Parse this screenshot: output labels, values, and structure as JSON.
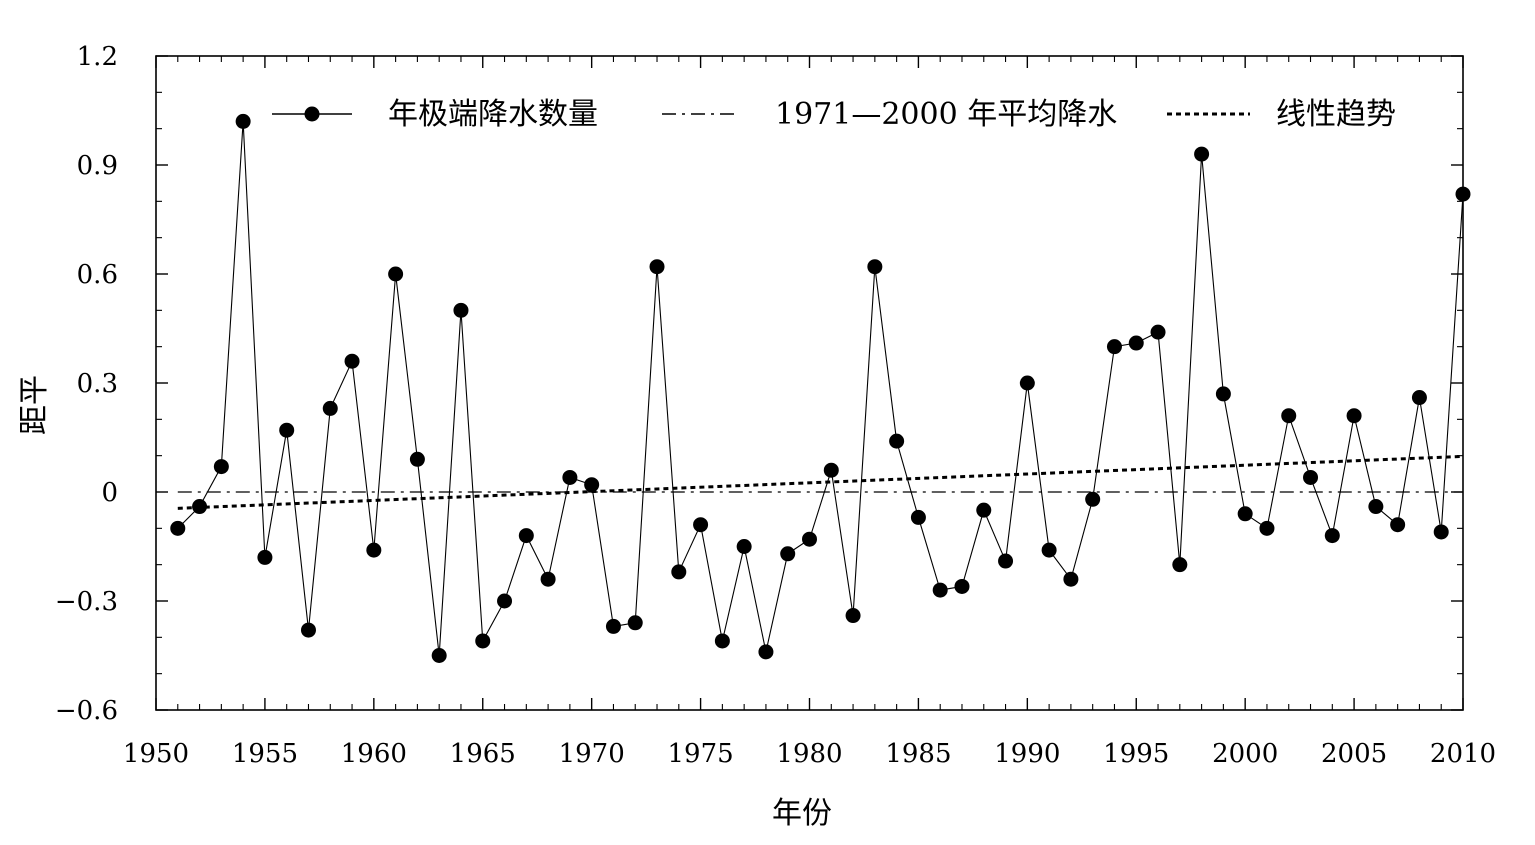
{
  "chart_data": {
    "type": "line",
    "xlabel": "年份",
    "ylabel": "距平",
    "xlim": [
      1950,
      2010
    ],
    "ylim": [
      -0.6,
      1.2
    ],
    "xticks": [
      1950,
      1955,
      1960,
      1965,
      1970,
      1975,
      1980,
      1985,
      1990,
      1995,
      2000,
      2005,
      2010
    ],
    "xtick_labels": [
      "1950",
      "1955",
      "1960",
      "1965",
      "1970",
      "1975",
      "1980",
      "1985",
      "1990",
      "1995",
      "2000",
      "2005",
      "2010"
    ],
    "yticks": [
      -0.6,
      -0.3,
      0,
      0.3,
      0.6,
      0.9,
      1.2
    ],
    "ytick_labels": [
      "−0.6",
      "−0.3",
      "0",
      "0.3",
      "0.6",
      "0.9",
      "1.2"
    ],
    "x": [
      1951,
      1952,
      1953,
      1954,
      1955,
      1956,
      1957,
      1958,
      1959,
      1960,
      1961,
      1962,
      1963,
      1964,
      1965,
      1966,
      1967,
      1968,
      1969,
      1970,
      1971,
      1972,
      1973,
      1974,
      1975,
      1976,
      1977,
      1978,
      1979,
      1980,
      1981,
      1982,
      1983,
      1984,
      1985,
      1986,
      1987,
      1988,
      1989,
      1990,
      1991,
      1992,
      1993,
      1994,
      1995,
      1996,
      1997,
      1998,
      1999,
      2000,
      2001,
      2002,
      2003,
      2004,
      2005,
      2006,
      2007,
      2008,
      2009,
      2010
    ],
    "series": [
      {
        "name": "年极端降水数量",
        "style": "solid-with-markers",
        "color": "#000000",
        "values": [
          -0.1,
          -0.04,
          0.07,
          1.02,
          -0.18,
          0.17,
          -0.38,
          0.23,
          0.36,
          -0.16,
          0.6,
          0.09,
          -0.45,
          0.5,
          -0.41,
          -0.3,
          -0.12,
          -0.24,
          0.04,
          0.02,
          -0.37,
          -0.36,
          0.62,
          -0.22,
          -0.09,
          -0.41,
          -0.15,
          -0.44,
          -0.17,
          -0.13,
          0.06,
          -0.34,
          0.62,
          0.14,
          -0.07,
          -0.27,
          -0.26,
          -0.05,
          -0.19,
          0.3,
          -0.16,
          -0.24,
          -0.02,
          0.4,
          0.41,
          0.44,
          -0.2,
          0.93,
          0.27,
          -0.06,
          -0.1,
          0.21,
          0.04,
          -0.12,
          0.21,
          -0.04,
          -0.09,
          0.26,
          -0.11,
          0.82
        ]
      },
      {
        "name": "1971—2000 年平均降水",
        "style": "dash-dot",
        "color": "#000000",
        "x": [
          1951,
          2010
        ],
        "values": [
          0,
          0
        ]
      },
      {
        "name": "线性趋势",
        "style": "dotted",
        "color": "#000000",
        "x": [
          1951,
          2010
        ],
        "values": [
          -0.045,
          0.098
        ]
      }
    ],
    "legend_position": "top",
    "grid": false
  }
}
